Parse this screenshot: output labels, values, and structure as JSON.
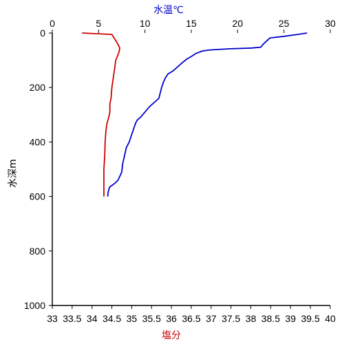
{
  "chart_data": {
    "type": "line",
    "title": "",
    "top_axis": {
      "label": "水温℃",
      "label_color": "#0000cc",
      "range": [
        0,
        30
      ],
      "ticks": [
        "0",
        "5",
        "10",
        "15",
        "20",
        "25",
        "30"
      ]
    },
    "bottom_axis": {
      "label": "塩分",
      "label_color": "#cc0000",
      "range": [
        33,
        40
      ],
      "ticks": [
        "33",
        "33.5",
        "34",
        "34.5",
        "35",
        "35.5",
        "36",
        "36.5",
        "37",
        "37.5",
        "38",
        "38.5",
        "39",
        "39.5",
        "40"
      ]
    },
    "y_axis": {
      "label": "水深m",
      "range": [
        0,
        1000
      ],
      "inverted": true,
      "ticks": [
        "0",
        "200",
        "400",
        "600",
        "800",
        "1000"
      ]
    },
    "grid": false,
    "series": [
      {
        "axis": "top",
        "color": "#0000cc",
        "x": [
          27.5,
          26.5,
          25,
          23.5,
          22.8,
          22.5,
          21.5,
          19,
          17,
          16.2,
          15.5,
          15,
          14.5,
          14,
          13.5,
          13,
          12.5,
          12.2,
          12,
          11.8,
          11.5,
          10.5,
          10,
          9.5,
          9.2,
          9,
          8.6,
          8.3,
          8,
          7.8,
          7.6,
          7.5,
          7.1,
          6.8,
          6.5,
          6.2,
          6.1,
          6.0,
          6.0
        ],
        "y": [
          0,
          5,
          12,
          18,
          40,
          52,
          55,
          58,
          62,
          66,
          75,
          86,
          96,
          110,
          125,
          140,
          150,
          165,
          180,
          200,
          240,
          270,
          290,
          310,
          318,
          330,
          370,
          400,
          420,
          450,
          480,
          510,
          540,
          550,
          558,
          565,
          575,
          590,
          600
        ]
      },
      {
        "axis": "bottom",
        "color": "#cc0000",
        "x": [
          33.75,
          34.5,
          34.65,
          34.7,
          34.68,
          34.6,
          34.55,
          34.5,
          34.48,
          34.45,
          34.45,
          34.42,
          34.38,
          34.35,
          34.33,
          34.32,
          34.3,
          34.3,
          34.3
        ],
        "y": [
          0,
          5,
          40,
          55,
          70,
          100,
          150,
          200,
          240,
          260,
          290,
          310,
          330,
          360,
          400,
          450,
          500,
          550,
          600
        ]
      }
    ]
  }
}
